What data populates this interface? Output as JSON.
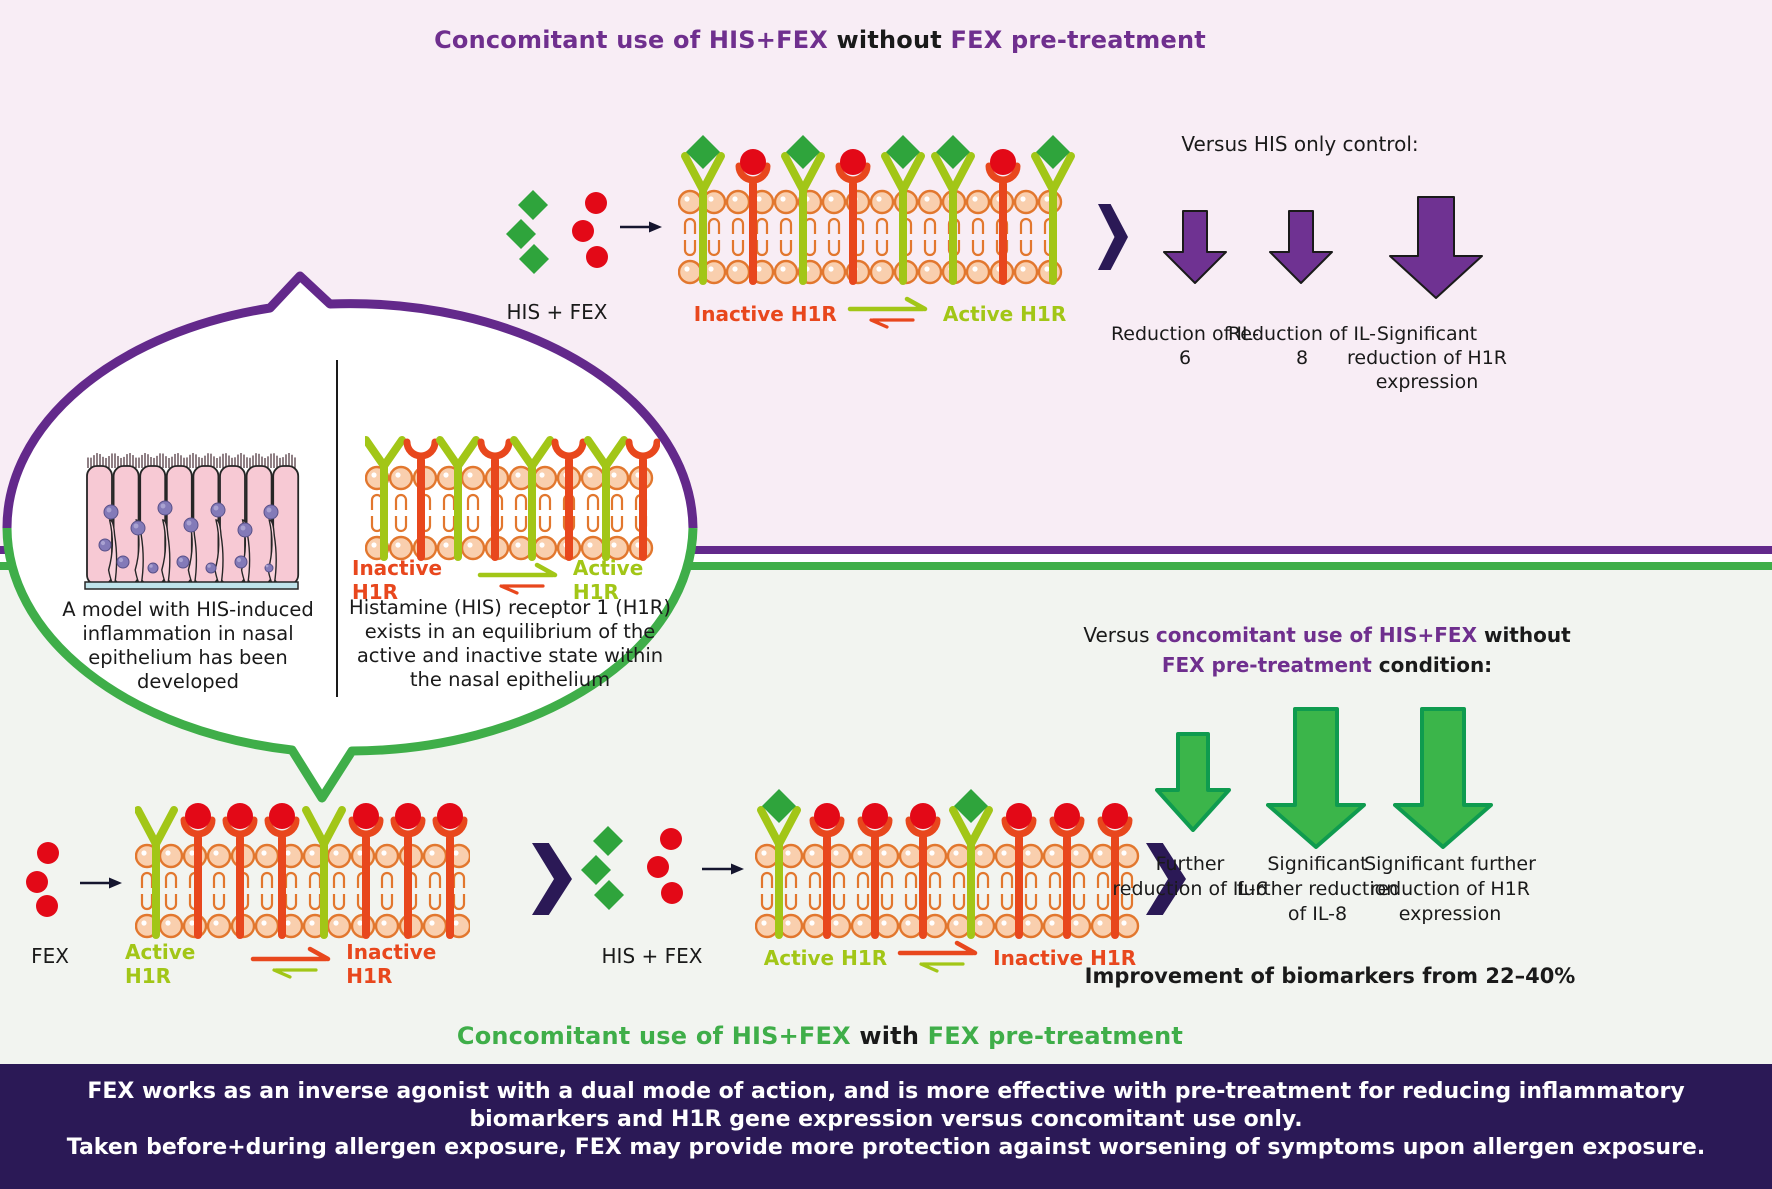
{
  "colors": {
    "top_background": "#f8edf5",
    "bottom_background": "#f2f4f0",
    "purple_accent": "#6f2f8e",
    "purple_arrow_fill": "#6f3292",
    "green_accent": "#3fae49",
    "green_arrow_fill": "#3bb54a",
    "green_arrow_stroke": "#0f9b4f",
    "dark_navy": "#2b1956",
    "active_h1r_green": "#a2c617",
    "inactive_h1r_red": "#e8471d",
    "his_diamond_green": "#2fa43c",
    "fex_circle_red": "#e30917",
    "lipid_fill": "#f9cfae",
    "lipid_stroke": "#e2772e"
  },
  "top_section": {
    "title": {
      "part1": "Concomitant use of HIS+FEX ",
      "part2": "without",
      "part3": " FEX pre-treatment"
    },
    "his_fex_label": "HIS + FEX",
    "equilibrium": {
      "left": "Inactive H1R",
      "right": "Active H1R"
    },
    "versus_heading": "Versus HIS only control:",
    "outcomes": [
      {
        "label": "Reduction of IL-6",
        "size": "small"
      },
      {
        "label": "Reduction of IL-8",
        "size": "small"
      },
      {
        "label": "Significant reduction of H1R expression",
        "size": "large"
      }
    ]
  },
  "bubble": {
    "left_caption": "A model with HIS-induced inflammation in nasal epithelium has been developed",
    "right_caption": "Histamine (HIS) receptor 1 (H1R) exists in an equilibrium of the active and inactive state within the nasal epithelium",
    "equilibrium": {
      "left": "Inactive H1R",
      "right": "Active H1R"
    }
  },
  "bottom_section": {
    "fex_label": "FEX",
    "his_fex_label": "HIS + FEX",
    "equilibrium1": {
      "left": "Active H1R",
      "right": "Inactive H1R"
    },
    "equilibrium2": {
      "left": "Active H1R",
      "right": "Inactive H1R"
    },
    "versus_heading": {
      "part1": "Versus ",
      "part2": "concomitant use of HIS+FEX",
      "part3": " without",
      "part4": "FEX pre-treatment",
      "part5": " condition:"
    },
    "outcomes": [
      {
        "label": "Further reduction of IL-6",
        "size": "small"
      },
      {
        "label": "Significant further reduction of IL-8",
        "size": "large"
      },
      {
        "label": "Significant further reduction of H1R expression",
        "size": "large"
      }
    ],
    "improvement": "Improvement of biomarkers from 22–40%",
    "title": {
      "part1": "Concomitant use of HIS+FEX ",
      "part2": "with",
      "part3": " FEX pre-treatment"
    }
  },
  "banner": {
    "line1": "FEX works as an inverse agonist with a dual mode of action, and is more effective with pre-treatment for reducing inflammatory",
    "line2": "biomarkers and H1R gene expression versus concomitant use only.",
    "line3": "Taken before+during allergen exposure, FEX may provide more protection against worsening of symptoms upon allergen exposure."
  },
  "molecules": {
    "his_fex_top": {
      "his": 3,
      "fex": 3
    },
    "fex_only": {
      "his": 0,
      "fex": 3
    },
    "his_fex_bottom": {
      "his": 3,
      "fex": 3
    }
  },
  "membranes": {
    "top": {
      "receptors": [
        {
          "type": "active",
          "ligand": "his"
        },
        {
          "type": "inactive",
          "ligand": "fex"
        },
        {
          "type": "active",
          "ligand": "his"
        },
        {
          "type": "inactive",
          "ligand": "fex"
        },
        {
          "type": "active",
          "ligand": "his"
        },
        {
          "type": "active",
          "ligand": "his"
        },
        {
          "type": "inactive",
          "ligand": "fex"
        },
        {
          "type": "active",
          "ligand": "his"
        }
      ]
    },
    "oval": {
      "receptors": [
        {
          "type": "active",
          "ligand": null
        },
        {
          "type": "inactive",
          "ligand": null
        },
        {
          "type": "active",
          "ligand": null
        },
        {
          "type": "inactive",
          "ligand": null
        },
        {
          "type": "active",
          "ligand": null
        },
        {
          "type": "inactive",
          "ligand": null
        },
        {
          "type": "active",
          "ligand": null
        },
        {
          "type": "inactive",
          "ligand": null
        }
      ]
    },
    "b1": {
      "receptors": [
        {
          "type": "active",
          "ligand": null
        },
        {
          "type": "inactive",
          "ligand": "fex"
        },
        {
          "type": "inactive",
          "ligand": "fex"
        },
        {
          "type": "inactive",
          "ligand": "fex"
        },
        {
          "type": "active",
          "ligand": null
        },
        {
          "type": "inactive",
          "ligand": "fex"
        },
        {
          "type": "inactive",
          "ligand": "fex"
        },
        {
          "type": "inactive",
          "ligand": "fex"
        }
      ]
    },
    "b2": {
      "receptors": [
        {
          "type": "active",
          "ligand": "his"
        },
        {
          "type": "inactive",
          "ligand": "fex"
        },
        {
          "type": "inactive",
          "ligand": "fex"
        },
        {
          "type": "inactive",
          "ligand": "fex"
        },
        {
          "type": "active",
          "ligand": "his"
        },
        {
          "type": "inactive",
          "ligand": "fex"
        },
        {
          "type": "inactive",
          "ligand": "fex"
        },
        {
          "type": "inactive",
          "ligand": "fex"
        }
      ]
    }
  }
}
